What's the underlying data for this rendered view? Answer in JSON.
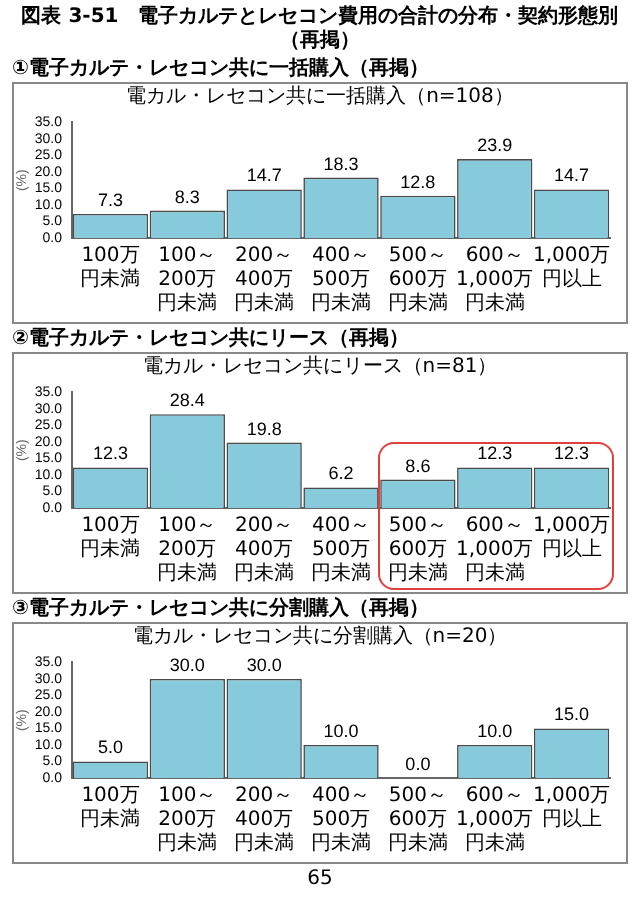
{
  "chart_data": [
    {
      "type": "bar",
      "title": "①電子カルテ・レセコン共に一括購入（再掲）",
      "subtitle": "電カル・レセコン共に一括購入（n=108）",
      "ylabel": "(%)",
      "annotations": [
        "図表 3-51　電子カルテとレセコン費用の合計の分布・契約形態別（再掲）"
      ],
      "categories": [
        "100万円未満",
        "100～200万円未満",
        "200～400万円未満",
        "400～500万円未満",
        "500～600万円未満",
        "600～1,000万円未満",
        "1,000万円以上"
      ],
      "values": [
        7.3,
        8.3,
        14.7,
        18.3,
        12.8,
        23.9,
        14.7
      ],
      "value_labels": [
        "7.3",
        "8.3",
        "14.7",
        "18.3",
        "12.8",
        "23.9",
        "14.7"
      ],
      "color": "#86cadb",
      "ylim": [
        0,
        35
      ],
      "yticks": [
        {
          "value": 0,
          "label": "0.0"
        },
        {
          "value": 5,
          "label": "5.0"
        },
        {
          "value": 10,
          "label": "10.0"
        },
        {
          "value": 15,
          "label": "15.0"
        },
        {
          "value": 20,
          "label": "20.0"
        },
        {
          "value": 25,
          "label": "25.0"
        },
        {
          "value": 30,
          "label": "30.0"
        },
        {
          "value": 35,
          "label": "35.0"
        }
      ],
      "grid": false,
      "legend": false
    },
    {
      "type": "bar",
      "title": "②電子カルテ・レセコン共にリース（再掲）",
      "subtitle": "電カル・レセコン共にリース（n=81）",
      "ylabel": "(%)",
      "categories": [
        "100万円未満",
        "100～200万円未満",
        "200～400万円未満",
        "400～500万円未満",
        "500～600万円未満",
        "600～1,000万円未満",
        "1,000万円以上"
      ],
      "values": [
        12.3,
        28.4,
        19.8,
        6.2,
        8.6,
        12.3,
        12.3
      ],
      "value_labels": [
        "12.3",
        "28.4",
        "19.8",
        "6.2",
        "8.6",
        "12.3",
        "12.3"
      ],
      "color": "#86cadb",
      "ylim": [
        0,
        35
      ],
      "yticks": [
        {
          "value": 0,
          "label": "0.0"
        },
        {
          "value": 5,
          "label": "5.0"
        },
        {
          "value": 10,
          "label": "10.0"
        },
        {
          "value": 15,
          "label": "15.0"
        },
        {
          "value": 20,
          "label": "20.0"
        },
        {
          "value": 25,
          "label": "25.0"
        },
        {
          "value": 30,
          "label": "30.0"
        },
        {
          "value": 35,
          "label": "35.0"
        }
      ],
      "grid": false,
      "legend": false
    },
    {
      "type": "bar",
      "title": "③電子カルテ・レセコン共に分割購入（再掲）",
      "subtitle": "電カル・レセコン共に分割購入（n=20）",
      "ylabel": "(%)",
      "annotations": [
        "65"
      ],
      "categories": [
        "100万円未満",
        "100～200万円未満",
        "200～400万円未満",
        "400～500万円未満",
        "500～600万円未満",
        "600～1,000万円未満",
        "1,000万円以上"
      ],
      "values": [
        5.0,
        30.0,
        30.0,
        10.0,
        0.0,
        10.0,
        15.0
      ],
      "value_labels": [
        "5.0",
        "30.0",
        "30.0",
        "10.0",
        "0.0",
        "10.0",
        "15.0"
      ],
      "color": "#86cadb",
      "ylim": [
        0,
        35
      ],
      "yticks": [
        {
          "value": 0,
          "label": "0.0"
        },
        {
          "value": 5,
          "label": "5.0"
        },
        {
          "value": 10,
          "label": "10.0"
        },
        {
          "value": 15,
          "label": "15.0"
        },
        {
          "value": 20,
          "label": "20.0"
        },
        {
          "value": 25,
          "label": "25.0"
        },
        {
          "value": 30,
          "label": "30.0"
        },
        {
          "value": 35,
          "label": "35.0"
        }
      ],
      "grid": false,
      "legend": false
    }
  ]
}
